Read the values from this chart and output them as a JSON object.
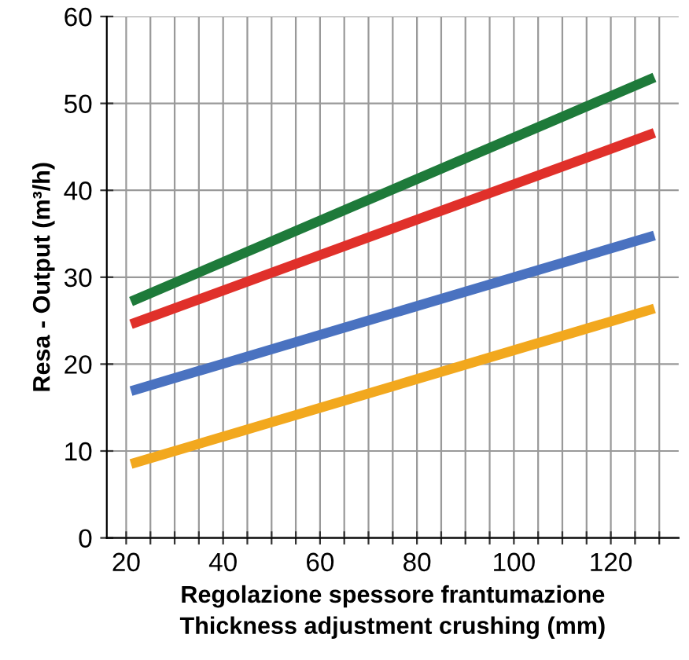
{
  "chart_data": {
    "type": "line",
    "xlabel": "Regolazione spessore frantumazione\nThickness adjustment crushing (mm)",
    "ylabel": "Resa - Output (m³/h)",
    "x": [
      21,
      129
    ],
    "series": [
      {
        "color": "#1e7a3a",
        "values": [
          27.2,
          53.0
        ]
      },
      {
        "color": "#e0302a",
        "values": [
          24.6,
          46.6
        ]
      },
      {
        "color": "#4a72c0",
        "values": [
          16.9,
          34.8
        ]
      },
      {
        "color": "#f2a81e",
        "values": [
          8.5,
          26.4
        ]
      }
    ],
    "xlim": [
      16,
      134
    ],
    "ylim": [
      0,
      60
    ],
    "xticks": [
      {
        "value": 20,
        "label": "20"
      },
      {
        "value": 25,
        "label": null
      },
      {
        "value": 30,
        "label": null
      },
      {
        "value": 35,
        "label": null
      },
      {
        "value": 40,
        "label": "40"
      },
      {
        "value": 45,
        "label": null
      },
      {
        "value": 50,
        "label": null
      },
      {
        "value": 55,
        "label": null
      },
      {
        "value": 60,
        "label": "60"
      },
      {
        "value": 65,
        "label": null
      },
      {
        "value": 70,
        "label": null
      },
      {
        "value": 75,
        "label": null
      },
      {
        "value": 80,
        "label": "80"
      },
      {
        "value": 85,
        "label": null
      },
      {
        "value": 90,
        "label": null
      },
      {
        "value": 95,
        "label": null
      },
      {
        "value": 100,
        "label": "100"
      },
      {
        "value": 105,
        "label": null
      },
      {
        "value": 110,
        "label": null
      },
      {
        "value": 115,
        "label": null
      },
      {
        "value": 120,
        "label": "120"
      },
      {
        "value": 125,
        "label": null
      },
      {
        "value": 130,
        "label": null
      }
    ],
    "yticks": [
      0,
      10,
      20,
      30,
      40,
      50,
      60
    ],
    "grid": true,
    "line_style": "solid",
    "marker": "none",
    "legend": false
  }
}
